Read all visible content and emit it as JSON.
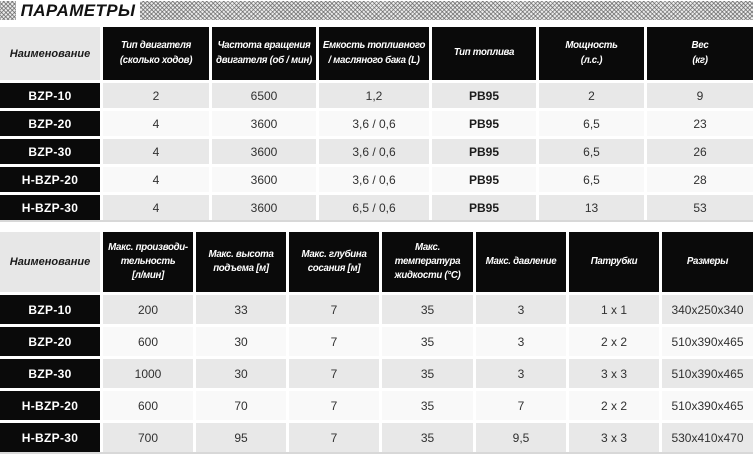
{
  "page_title": "ПАРАМЕТРЫ",
  "colors": {
    "header_cell_bg": "#0a0a0a",
    "name_header_bg": "#e7e7e7",
    "row_odd_bg": "#e8e8e8",
    "row_even_bg": "#f9f9f9",
    "header_text": "#ffffff"
  },
  "engine_table": {
    "name_header": "Наименование",
    "columns": [
      "Тип двигателя\n(сколько ходов)",
      "Частота вращения\nдвигателя (об / мин)",
      "Емкость топливного\n/ масляного бака (L)",
      "Тип топлива",
      "Мощность\n(л.с.)",
      "Вес\n(кг)"
    ],
    "rows": [
      {
        "name": "BZP-10",
        "values": [
          "2",
          "6500",
          "1,2",
          "PB95",
          "2",
          "9"
        ]
      },
      {
        "name": "BZP-20",
        "values": [
          "4",
          "3600",
          "3,6 / 0,6",
          "PB95",
          "6,5",
          "23"
        ]
      },
      {
        "name": "BZP-30",
        "values": [
          "4",
          "3600",
          "3,6 / 0,6",
          "PB95",
          "6,5",
          "26"
        ]
      },
      {
        "name": "H-BZP-20",
        "values": [
          "4",
          "3600",
          "3,6 / 0,6",
          "PB95",
          "6,5",
          "28"
        ]
      },
      {
        "name": "H-BZP-30",
        "values": [
          "4",
          "3600",
          "6,5 / 0,6",
          "PB95",
          "13",
          "53"
        ]
      }
    ]
  },
  "pump_table": {
    "name_header": "Наименование",
    "columns": [
      "Макс. производи-\nтельность\n[л/мин]",
      "Макс. высота\nподъема [м]",
      "Макс. глубина\nсосания [м]",
      "Макс.\nтемпература\nжидкости (°C)",
      "Макс. давление",
      "Патрубки",
      "Размеры"
    ],
    "rows": [
      {
        "name": "BZP-10",
        "values": [
          "200",
          "33",
          "7",
          "35",
          "3",
          "1 x 1",
          "340x250x340"
        ]
      },
      {
        "name": "BZP-20",
        "values": [
          "600",
          "30",
          "7",
          "35",
          "3",
          "2 x 2",
          "510x390x465"
        ]
      },
      {
        "name": "BZP-30",
        "values": [
          "1000",
          "30",
          "7",
          "35",
          "3",
          "3 x 3",
          "510x390x465"
        ]
      },
      {
        "name": "H-BZP-20",
        "values": [
          "600",
          "70",
          "7",
          "35",
          "7",
          "2 x 2",
          "510x390x465"
        ]
      },
      {
        "name": "H-BZP-30",
        "values": [
          "700",
          "95",
          "7",
          "35",
          "9,5",
          "3 x 3",
          "530x410x470"
        ]
      }
    ]
  }
}
